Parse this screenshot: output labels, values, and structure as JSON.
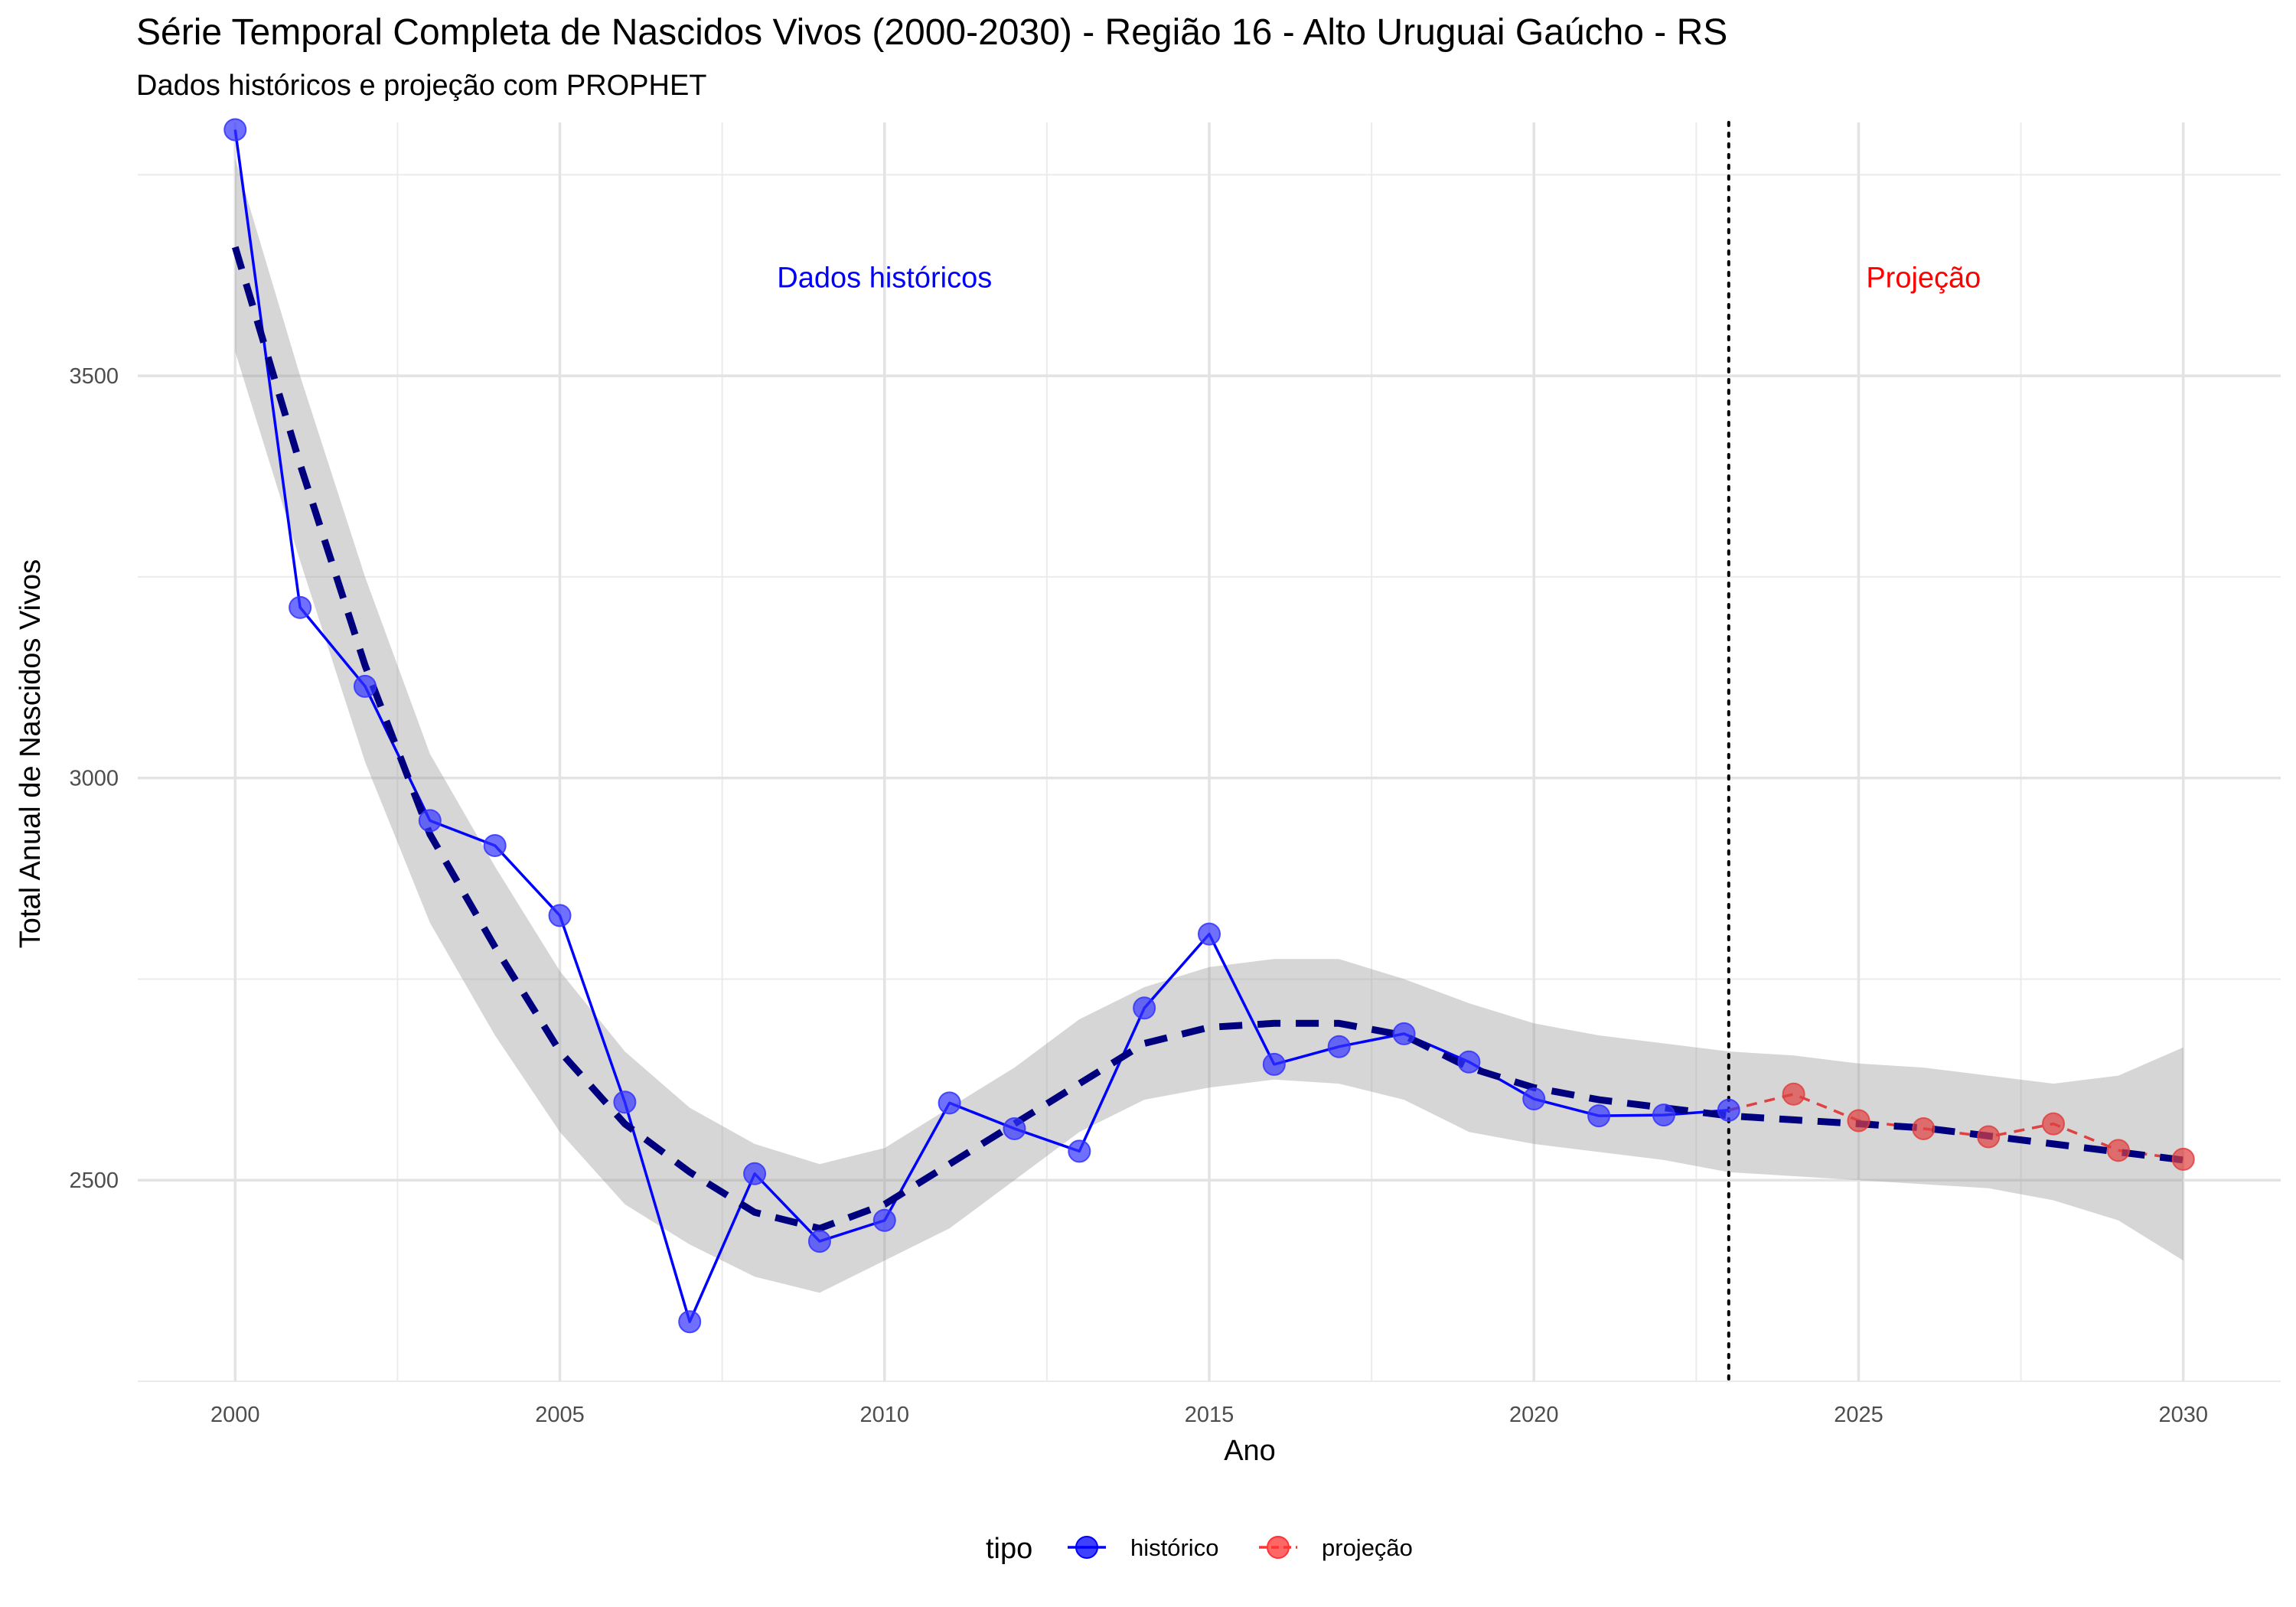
{
  "chart_data": {
    "type": "line",
    "title": "Série Temporal Completa de Nascidos Vivos (2000-2030) -  Região 16 - Alto Uruguai Gaúcho - RS",
    "subtitle": "Dados históricos e projeção com PROPHET",
    "xlabel": "Ano",
    "ylabel": "Total Anual de Nascidos Vivos",
    "xlim": [
      1998.5,
      2031.5
    ],
    "ylim": [
      2250,
      3815
    ],
    "x_ticks": [
      2000,
      2005,
      2010,
      2015,
      2020,
      2025,
      2030
    ],
    "y_ticks": [
      2500,
      3000,
      3500
    ],
    "grid": true,
    "cutoff_year": 2023,
    "annotations": [
      {
        "text": "Dados históricos",
        "x": 2010,
        "y": 3610,
        "color": "#0000ff"
      },
      {
        "text": "Projeção",
        "x": 2026,
        "y": 3610,
        "color": "#ff0000"
      }
    ],
    "legend": {
      "title": "tipo",
      "position": "bottom",
      "entries": [
        {
          "label": "histórico",
          "color": "#0000ff"
        },
        {
          "label": "projeção",
          "color": "#ff3333"
        }
      ]
    },
    "series": [
      {
        "name": "histórico",
        "color": "#0000ff",
        "x": [
          2000,
          2001,
          2002,
          2003,
          2004,
          2005,
          2006,
          2007,
          2008,
          2009,
          2010,
          2011,
          2012,
          2013,
          2014,
          2015,
          2016,
          2017,
          2018,
          2019,
          2020,
          2021,
          2022,
          2023
        ],
        "y": [
          3806,
          3212,
          3114,
          2947,
          2916,
          2829,
          2597,
          2324,
          2508,
          2424,
          2450,
          2596,
          2564,
          2536,
          2714,
          2806,
          2644,
          2666,
          2682,
          2647,
          2601,
          2580,
          2581,
          2587
        ]
      },
      {
        "name": "projeção",
        "color": "#e04040",
        "x": [
          2023,
          2024,
          2025,
          2026,
          2027,
          2028,
          2029,
          2030
        ],
        "y": [
          2587,
          2607,
          2574,
          2564,
          2554,
          2570,
          2537,
          2526
        ]
      }
    ],
    "trend": {
      "color": "#00007f",
      "x": [
        2000,
        2001,
        2002,
        2003,
        2004,
        2005,
        2006,
        2007,
        2008,
        2009,
        2010,
        2011,
        2012,
        2013,
        2014,
        2015,
        2016,
        2017,
        2018,
        2019,
        2020,
        2021,
        2022,
        2023,
        2024,
        2025,
        2026,
        2027,
        2028,
        2029,
        2030
      ],
      "y": [
        3660,
        3390,
        3140,
        2930,
        2790,
        2660,
        2570,
        2510,
        2460,
        2440,
        2470,
        2520,
        2570,
        2620,
        2670,
        2690,
        2695,
        2695,
        2680,
        2640,
        2615,
        2600,
        2590,
        2580,
        2575,
        2570,
        2565,
        2555,
        2545,
        2535,
        2525
      ],
      "band_lower": [
        3530,
        3270,
        3020,
        2820,
        2680,
        2560,
        2470,
        2420,
        2380,
        2360,
        2400,
        2440,
        2500,
        2560,
        2600,
        2615,
        2625,
        2620,
        2600,
        2560,
        2545,
        2535,
        2525,
        2510,
        2505,
        2500,
        2495,
        2490,
        2475,
        2450,
        2400
      ],
      "band_upper": [
        3770,
        3500,
        3250,
        3030,
        2890,
        2760,
        2660,
        2590,
        2545,
        2520,
        2540,
        2590,
        2640,
        2700,
        2740,
        2765,
        2775,
        2775,
        2750,
        2720,
        2695,
        2680,
        2670,
        2660,
        2655,
        2645,
        2640,
        2630,
        2620,
        2630,
        2665
      ]
    }
  }
}
